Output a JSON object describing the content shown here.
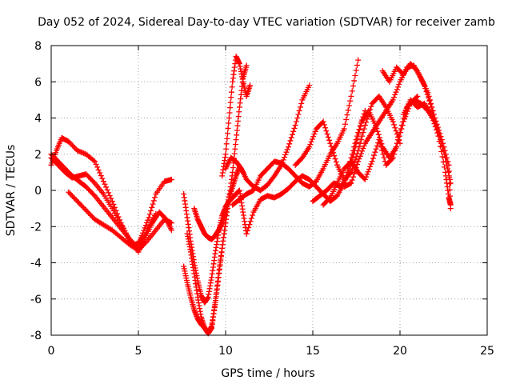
{
  "chart_data": {
    "type": "scatter",
    "title": "Day 052 of 2024, Sidereal Day-to-day VTEC variation (SDTVAR) for receiver zamb",
    "xlabel": "GPS time / hours",
    "ylabel": "SDTVAR / TECUs",
    "xlim": [
      0,
      25
    ],
    "ylim": [
      -8,
      8
    ],
    "xticks": [
      "0",
      "5",
      "10",
      "15",
      "20",
      "25"
    ],
    "yticks": [
      "-8",
      "-6",
      "-4",
      "-2",
      "0",
      "2",
      "4",
      "6",
      "8"
    ],
    "grid": true,
    "marker": "+",
    "color": "#ff0000",
    "series": [
      {
        "x": [
          0.0,
          0.3,
          0.6,
          1.0,
          1.5,
          2.0,
          2.5,
          3.0,
          3.5,
          4.0,
          4.5,
          4.9,
          5.2,
          5.6,
          6.0,
          6.5,
          6.9
        ],
        "y": [
          1.4,
          2.2,
          2.9,
          2.7,
          2.2,
          2.0,
          1.6,
          0.5,
          -0.6,
          -1.8,
          -2.8,
          -3.2,
          -2.5,
          -1.5,
          -0.2,
          0.5,
          0.6
        ]
      },
      {
        "x": [
          0.0,
          0.4,
          0.8,
          1.2,
          1.6,
          2.0,
          2.5,
          3.0,
          3.5,
          4.0,
          4.5,
          5.0,
          5.4,
          5.8,
          6.2,
          6.6,
          6.9
        ],
        "y": [
          1.8,
          1.4,
          1.0,
          0.7,
          0.8,
          0.9,
          0.4,
          -0.2,
          -1.0,
          -1.9,
          -2.7,
          -3.4,
          -2.6,
          -1.8,
          -1.2,
          -1.6,
          -2.2
        ]
      },
      {
        "x": [
          0.0,
          0.4,
          0.8,
          1.2,
          1.6,
          2.0,
          2.5,
          3.0,
          3.5,
          4.0,
          4.5,
          4.8,
          5.2,
          5.6,
          6.0
        ],
        "y": [
          2.0,
          1.6,
          1.2,
          0.8,
          0.5,
          0.2,
          -0.3,
          -0.9,
          -1.5,
          -2.1,
          -2.7,
          -3.0,
          -2.8,
          -2.0,
          -1.3
        ]
      },
      {
        "x": [
          1.0,
          1.5,
          2.0,
          2.5,
          3.0,
          3.5,
          4.0,
          4.5,
          5.0,
          5.5,
          6.0,
          6.5,
          6.9
        ],
        "y": [
          -0.1,
          -0.6,
          -1.1,
          -1.6,
          -1.9,
          -2.2,
          -2.6,
          -3.0,
          -3.3,
          -2.8,
          -2.2,
          -1.6,
          -1.8
        ]
      },
      {
        "x": [
          7.6,
          7.8,
          8.0,
          8.2,
          8.4,
          8.6,
          8.8,
          9.0,
          9.2,
          9.4,
          9.6,
          9.8,
          10.0,
          10.2,
          10.4,
          10.6,
          10.8,
          11.0,
          11.2
        ],
        "y": [
          -0.2,
          -1.5,
          -2.8,
          -4.0,
          -5.0,
          -5.8,
          -6.2,
          -5.9,
          -4.8,
          -3.5,
          -2.3,
          -1.4,
          -0.9,
          -0.6,
          -0.4,
          -0.2,
          0.0,
          -1.2,
          -2.4
        ]
      },
      {
        "x": [
          7.8,
          8.0,
          8.2,
          8.4,
          8.6,
          8.8,
          9.0,
          9.2,
          9.4,
          9.6,
          9.8,
          10.0,
          10.2,
          10.4,
          10.6,
          10.8,
          11.0
        ],
        "y": [
          -2.4,
          -3.4,
          -4.6,
          -5.9,
          -7.0,
          -7.6,
          -7.9,
          -7.6,
          -6.2,
          -4.6,
          -3.2,
          -1.8,
          -0.4,
          0.2,
          0.8,
          1.3,
          1.0
        ]
      },
      {
        "x": [
          7.6,
          7.8,
          8.0,
          8.2,
          8.4,
          8.6,
          8.8,
          9.0,
          9.2,
          9.4,
          9.6,
          9.8,
          10.0
        ],
        "y": [
          -4.2,
          -5.1,
          -5.9,
          -6.6,
          -7.1,
          -7.4,
          -7.6,
          -7.9,
          -7.5,
          -6.3,
          -4.8,
          -3.2,
          -1.8
        ]
      },
      {
        "x": [
          8.2,
          8.4,
          8.6,
          8.8,
          9.0,
          9.2,
          9.4,
          9.6,
          9.8,
          10.0,
          10.2,
          10.4,
          10.6,
          10.8,
          11.0,
          11.2
        ],
        "y": [
          -1.0,
          -1.6,
          -2.0,
          -2.4,
          -2.6,
          -2.7,
          -2.5,
          -2.2,
          -1.8,
          -1.3,
          -0.4,
          1.0,
          2.8,
          4.6,
          6.2,
          6.9
        ]
      },
      {
        "x": [
          9.8,
          10.0,
          10.2,
          10.4,
          10.6,
          10.8,
          11.0,
          11.2,
          11.4
        ],
        "y": [
          0.8,
          2.0,
          4.0,
          6.0,
          7.4,
          7.0,
          6.0,
          5.2,
          5.8
        ]
      },
      {
        "x": [
          10.0,
          10.3,
          10.6,
          10.9,
          11.2,
          11.6,
          12.0,
          12.4,
          12.8,
          13.2,
          13.6,
          14.0,
          14.4,
          14.8
        ],
        "y": [
          1.2,
          1.8,
          1.6,
          1.2,
          0.6,
          0.2,
          0.0,
          0.3,
          0.8,
          1.4,
          2.4,
          3.6,
          5.0,
          5.8
        ]
      },
      {
        "x": [
          10.4,
          10.8,
          11.2,
          11.6,
          12.0,
          12.4,
          12.8,
          13.2,
          13.6,
          14.0,
          14.4,
          14.8,
          15.2,
          15.6,
          16.0,
          16.4,
          16.8,
          17.2,
          17.6
        ],
        "y": [
          -0.8,
          -0.5,
          -0.2,
          0.0,
          0.8,
          1.2,
          1.6,
          1.5,
          1.2,
          0.8,
          0.4,
          0.2,
          0.5,
          1.2,
          2.0,
          2.6,
          3.4,
          5.2,
          7.2
        ]
      },
      {
        "x": [
          11.2,
          11.6,
          12.0,
          12.4,
          12.8,
          13.2,
          13.6,
          14.0,
          14.4,
          14.8,
          15.2,
          15.6,
          16.0,
          16.4,
          16.8,
          17.2,
          17.6,
          18.0
        ],
        "y": [
          -2.4,
          -1.2,
          -0.5,
          -0.3,
          -0.4,
          -0.2,
          0.1,
          0.5,
          0.8,
          0.6,
          0.2,
          -0.2,
          -0.6,
          -0.3,
          0.4,
          1.8,
          3.2,
          4.4
        ]
      },
      {
        "x": [
          14.0,
          14.4,
          14.8,
          15.2,
          15.6,
          16.0,
          16.4,
          16.8,
          17.2,
          17.6,
          18.0,
          18.4,
          18.8,
          19.2,
          19.6,
          20.0
        ],
        "y": [
          1.4,
          1.8,
          2.4,
          3.4,
          3.8,
          2.6,
          1.4,
          0.6,
          1.0,
          2.2,
          3.6,
          4.8,
          5.2,
          4.6,
          3.8,
          2.6
        ]
      },
      {
        "x": [
          15.0,
          15.4,
          15.8,
          16.2,
          16.6,
          17.0,
          17.4,
          17.8,
          18.2,
          18.6,
          19.0,
          19.4,
          19.8,
          20.2,
          20.6,
          21.0
        ],
        "y": [
          -0.6,
          -0.3,
          0.0,
          0.4,
          0.2,
          0.8,
          2.2,
          3.8,
          4.4,
          3.6,
          2.4,
          1.8,
          2.4,
          3.8,
          4.8,
          5.2
        ]
      },
      {
        "x": [
          15.6,
          16.0,
          16.4,
          16.8,
          17.2,
          17.6,
          18.0,
          18.4,
          18.8,
          19.2,
          19.6,
          20.0,
          20.4,
          20.8,
          21.2,
          21.6,
          22.0
        ],
        "y": [
          -0.8,
          -0.4,
          0.4,
          1.2,
          1.6,
          1.0,
          0.6,
          1.6,
          2.8,
          1.4,
          1.8,
          3.2,
          4.6,
          5.0,
          4.8,
          4.4,
          3.8
        ]
      },
      {
        "x": [
          16.8,
          17.2,
          17.6,
          18.0,
          18.4,
          18.8,
          19.2,
          19.6,
          20.0,
          20.4,
          20.8,
          21.2,
          21.6,
          22.0,
          22.4,
          22.8,
          22.9
        ],
        "y": [
          0.2,
          0.4,
          1.6,
          2.6,
          3.2,
          3.8,
          4.4,
          5.0,
          6.0,
          6.8,
          6.9,
          6.2,
          5.4,
          4.0,
          2.8,
          1.4,
          -1.0
        ]
      },
      {
        "x": [
          19.0,
          19.4,
          19.8,
          20.2,
          20.6,
          21.0,
          21.4,
          21.8,
          22.2,
          22.6,
          22.9
        ],
        "y": [
          6.6,
          6.0,
          6.8,
          6.4,
          7.0,
          6.6,
          5.8,
          4.6,
          3.2,
          1.8,
          0.4
        ]
      },
      {
        "x": [
          20.2,
          20.6,
          21.0,
          21.4,
          21.8,
          22.2,
          22.6,
          22.8,
          22.9
        ],
        "y": [
          4.2,
          5.0,
          4.6,
          4.8,
          4.2,
          3.0,
          1.0,
          -0.4,
          -0.8
        ]
      }
    ]
  }
}
